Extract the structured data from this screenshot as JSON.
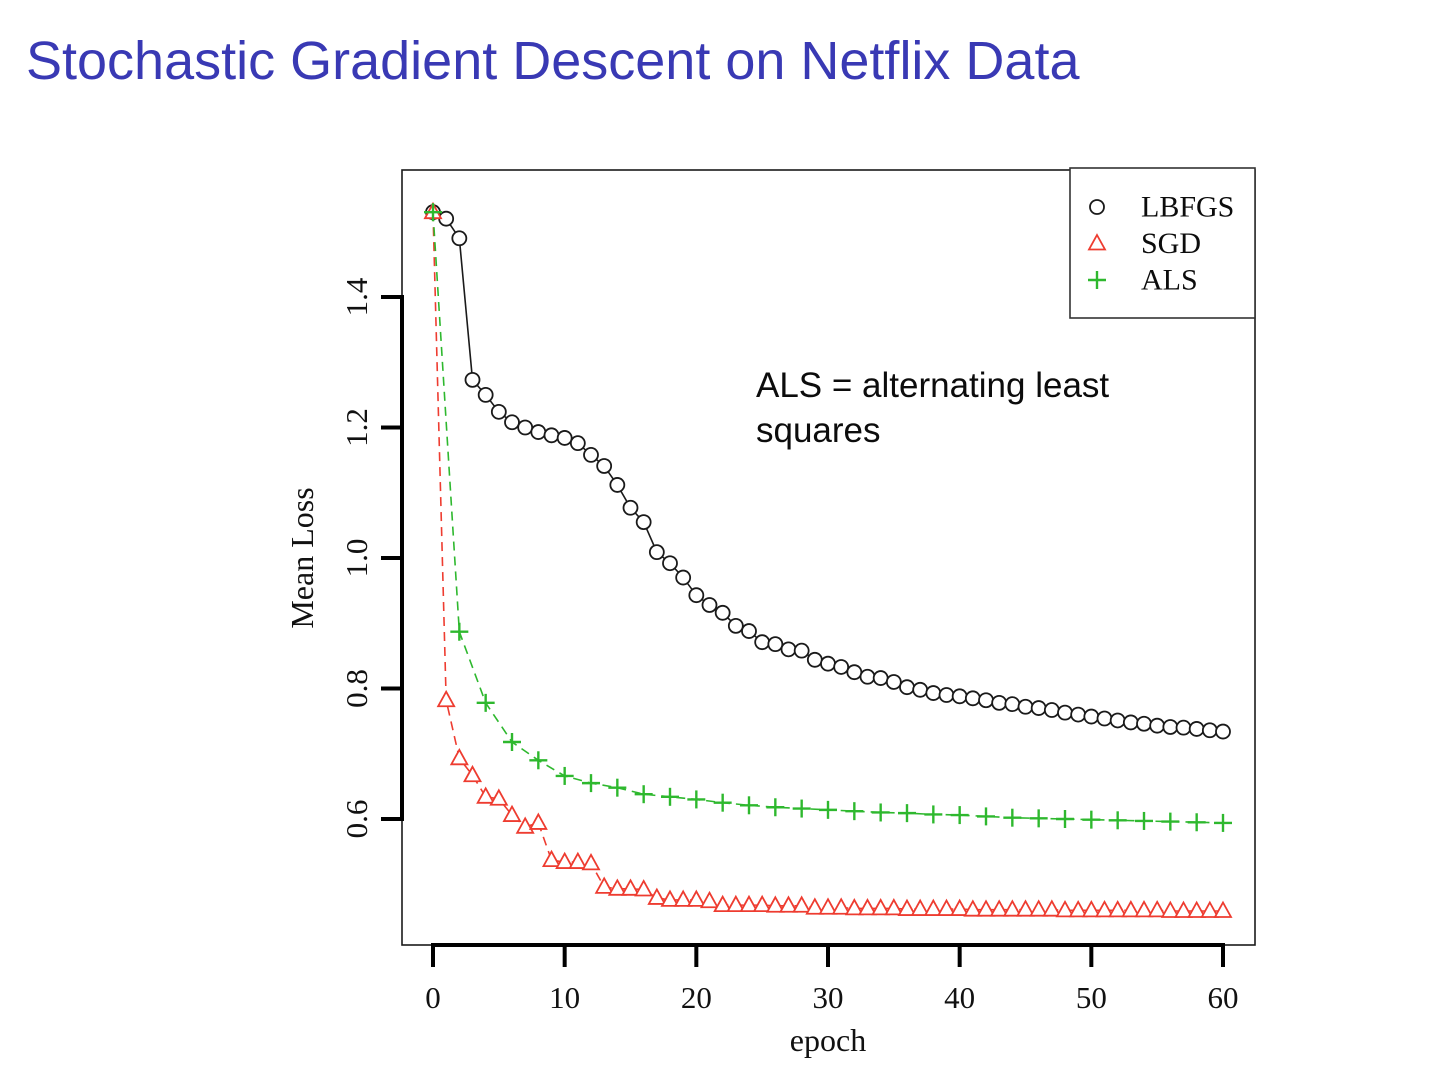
{
  "slide": {
    "title": "Stochastic Gradient Descent on Netflix Data",
    "annotation": "ALS = alternating least squares"
  },
  "colors": {
    "title_blue": "#3939b4",
    "lbfgs_black": "#1a1a1a",
    "sgd_red": "#ee3c30",
    "als_green": "#2eb82e",
    "axis_text": "#111111"
  },
  "chart_data": {
    "type": "scatter",
    "title": "",
    "xlabel": "epoch",
    "ylabel": "Mean Loss",
    "xlim": [
      -2.5,
      62.5
    ],
    "ylim": [
      0.405,
      1.595
    ],
    "grid": false,
    "legend_position": "top-right",
    "x_ticks": [
      0,
      10,
      20,
      30,
      40,
      50,
      60
    ],
    "x_tick_labels": [
      "0",
      "10",
      "20",
      "30",
      "40",
      "50",
      "60"
    ],
    "y_ticks": [
      0.6,
      0.8,
      1.0,
      1.2,
      1.4
    ],
    "y_tick_labels": [
      "0.6",
      "0.8",
      "1.0",
      "1.2",
      "1.4"
    ],
    "legend": [
      "LBFGS",
      "SGD",
      "ALS"
    ],
    "series": [
      {
        "name": "LBFGS",
        "marker": "circle",
        "line_style": "solid",
        "color": "#1a1a1a",
        "x": [
          0,
          1,
          2,
          3,
          4,
          5,
          6,
          7,
          8,
          9,
          10,
          11,
          12,
          13,
          14,
          15,
          16,
          17,
          18,
          19,
          20,
          21,
          22,
          23,
          24,
          25,
          26,
          27,
          28,
          29,
          30,
          31,
          32,
          33,
          34,
          35,
          36,
          37,
          38,
          39,
          40,
          41,
          42,
          43,
          44,
          45,
          46,
          47,
          48,
          49,
          50,
          51,
          52,
          53,
          54,
          55,
          56,
          57,
          58,
          59,
          60
        ],
        "y": [
          1.53,
          1.52,
          1.49,
          1.273,
          1.25,
          1.224,
          1.208,
          1.2,
          1.193,
          1.188,
          1.184,
          1.176,
          1.158,
          1.141,
          1.112,
          1.077,
          1.055,
          1.009,
          0.992,
          0.97,
          0.943,
          0.928,
          0.916,
          0.896,
          0.888,
          0.871,
          0.868,
          0.86,
          0.858,
          0.844,
          0.838,
          0.833,
          0.825,
          0.818,
          0.816,
          0.81,
          0.802,
          0.798,
          0.793,
          0.79,
          0.788,
          0.785,
          0.782,
          0.778,
          0.776,
          0.772,
          0.77,
          0.767,
          0.763,
          0.76,
          0.757,
          0.754,
          0.751,
          0.748,
          0.746,
          0.743,
          0.741,
          0.74,
          0.738,
          0.736,
          0.734
        ]
      },
      {
        "name": "SGD",
        "marker": "triangle",
        "line_style": "dashed",
        "color": "#ee3c30",
        "x": [
          0,
          1,
          2,
          3,
          4,
          5,
          6,
          7,
          8,
          9,
          10,
          11,
          12,
          13,
          14,
          15,
          16,
          17,
          18,
          19,
          20,
          21,
          22,
          23,
          24,
          25,
          26,
          27,
          28,
          29,
          30,
          31,
          32,
          33,
          34,
          35,
          36,
          37,
          38,
          39,
          40,
          41,
          42,
          43,
          44,
          45,
          46,
          47,
          48,
          49,
          50,
          51,
          52,
          53,
          54,
          55,
          56,
          57,
          58,
          59,
          60
        ],
        "y": [
          1.53,
          0.782,
          0.693,
          0.667,
          0.634,
          0.631,
          0.606,
          0.588,
          0.594,
          0.537,
          0.534,
          0.534,
          0.532,
          0.496,
          0.493,
          0.493,
          0.492,
          0.479,
          0.476,
          0.476,
          0.476,
          0.474,
          0.468,
          0.468,
          0.468,
          0.468,
          0.467,
          0.467,
          0.467,
          0.464,
          0.464,
          0.464,
          0.463,
          0.463,
          0.463,
          0.463,
          0.462,
          0.462,
          0.462,
          0.462,
          0.462,
          0.461,
          0.461,
          0.461,
          0.461,
          0.461,
          0.461,
          0.461,
          0.46,
          0.46,
          0.46,
          0.46,
          0.46,
          0.46,
          0.46,
          0.46,
          0.459,
          0.459,
          0.459,
          0.459,
          0.459
        ]
      },
      {
        "name": "ALS",
        "marker": "plus",
        "line_style": "dashed",
        "color": "#2eb82e",
        "x": [
          0,
          2,
          4,
          6,
          8,
          10,
          12,
          14,
          16,
          18,
          20,
          22,
          24,
          26,
          28,
          30,
          32,
          34,
          36,
          38,
          40,
          42,
          44,
          46,
          48,
          50,
          52,
          54,
          56,
          58,
          60
        ],
        "y": [
          1.53,
          0.887,
          0.778,
          0.718,
          0.69,
          0.666,
          0.655,
          0.648,
          0.638,
          0.634,
          0.63,
          0.625,
          0.621,
          0.618,
          0.616,
          0.614,
          0.612,
          0.61,
          0.609,
          0.607,
          0.606,
          0.604,
          0.602,
          0.601,
          0.6,
          0.599,
          0.598,
          0.597,
          0.596,
          0.595,
          0.594
        ]
      }
    ]
  }
}
